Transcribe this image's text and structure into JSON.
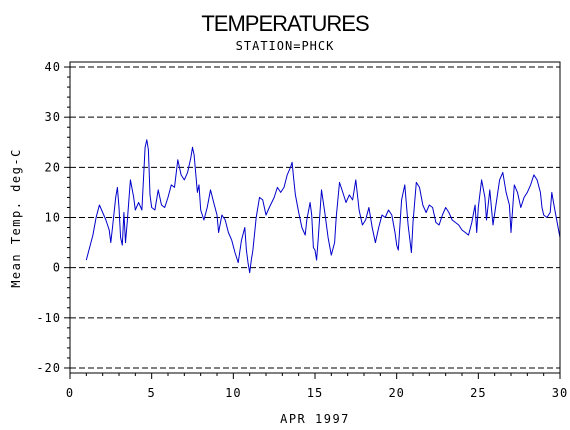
{
  "chart_data": {
    "type": "line",
    "title": "TEMPERATURES",
    "subtitle": "STATION=PHCK",
    "xlabel": "APR 1997",
    "ylabel": "Mean Temp. deg-C",
    "xlim": [
      0,
      30
    ],
    "ylim": [
      -21,
      41
    ],
    "x_ticks": [
      0,
      5,
      10,
      15,
      20,
      25,
      30
    ],
    "y_ticks": [
      -20,
      -10,
      0,
      10,
      20,
      30,
      40
    ],
    "gridlines_y": [
      -20,
      -10,
      0,
      10,
      20,
      30,
      40
    ],
    "grid": "horizontal dashed",
    "legend": "none",
    "series": [
      {
        "color": "#0000cc",
        "points": [
          [
            1.0,
            1.5
          ],
          [
            1.2,
            4.0
          ],
          [
            1.4,
            6.5
          ],
          [
            1.6,
            10.0
          ],
          [
            1.8,
            12.5
          ],
          [
            2.0,
            11.0
          ],
          [
            2.2,
            9.5
          ],
          [
            2.4,
            7.5
          ],
          [
            2.5,
            5.0
          ],
          [
            2.6,
            8.0
          ],
          [
            2.8,
            14.0
          ],
          [
            2.9,
            16.0
          ],
          [
            3.0,
            12.0
          ],
          [
            3.1,
            6.0
          ],
          [
            3.2,
            4.5
          ],
          [
            3.3,
            11.0
          ],
          [
            3.4,
            5.0
          ],
          [
            3.5,
            9.0
          ],
          [
            3.7,
            17.5
          ],
          [
            3.9,
            14.0
          ],
          [
            4.0,
            11.5
          ],
          [
            4.2,
            13.0
          ],
          [
            4.4,
            11.5
          ],
          [
            4.6,
            24.0
          ],
          [
            4.7,
            25.5
          ],
          [
            4.8,
            23.5
          ],
          [
            4.9,
            14.5
          ],
          [
            5.0,
            12.0
          ],
          [
            5.2,
            11.5
          ],
          [
            5.4,
            15.5
          ],
          [
            5.6,
            12.5
          ],
          [
            5.8,
            12.0
          ],
          [
            6.0,
            14.0
          ],
          [
            6.2,
            16.5
          ],
          [
            6.4,
            16.0
          ],
          [
            6.6,
            21.5
          ],
          [
            6.8,
            18.5
          ],
          [
            7.0,
            17.5
          ],
          [
            7.2,
            19.0
          ],
          [
            7.4,
            22.0
          ],
          [
            7.5,
            24.0
          ],
          [
            7.6,
            22.5
          ],
          [
            7.8,
            15.0
          ],
          [
            7.9,
            16.5
          ],
          [
            8.0,
            11.5
          ],
          [
            8.2,
            9.5
          ],
          [
            8.4,
            12.0
          ],
          [
            8.6,
            15.5
          ],
          [
            8.8,
            13.0
          ],
          [
            9.0,
            10.5
          ],
          [
            9.1,
            7.0
          ],
          [
            9.3,
            10.5
          ],
          [
            9.5,
            9.5
          ],
          [
            9.7,
            7.0
          ],
          [
            9.9,
            5.5
          ],
          [
            10.1,
            3.0
          ],
          [
            10.3,
            1.0
          ],
          [
            10.5,
            5.5
          ],
          [
            10.7,
            8.0
          ],
          [
            10.8,
            3.5
          ],
          [
            10.9,
            1.0
          ],
          [
            11.0,
            -1.0
          ],
          [
            11.1,
            1.5
          ],
          [
            11.2,
            3.5
          ],
          [
            11.4,
            10.0
          ],
          [
            11.6,
            14.0
          ],
          [
            11.8,
            13.5
          ],
          [
            12.0,
            10.5
          ],
          [
            12.2,
            12.0
          ],
          [
            12.5,
            14.0
          ],
          [
            12.7,
            16.0
          ],
          [
            12.9,
            15.0
          ],
          [
            13.1,
            16.0
          ],
          [
            13.3,
            18.5
          ],
          [
            13.5,
            20.0
          ],
          [
            13.6,
            21.0
          ],
          [
            13.7,
            17.5
          ],
          [
            13.8,
            14.5
          ],
          [
            14.0,
            11.0
          ],
          [
            14.2,
            8.0
          ],
          [
            14.4,
            6.5
          ],
          [
            14.5,
            9.5
          ],
          [
            14.7,
            13.0
          ],
          [
            14.8,
            10.5
          ],
          [
            14.9,
            4.0
          ],
          [
            15.0,
            3.5
          ],
          [
            15.1,
            1.5
          ],
          [
            15.2,
            6.0
          ],
          [
            15.4,
            15.5
          ],
          [
            15.6,
            11.0
          ],
          [
            15.8,
            6.0
          ],
          [
            16.0,
            2.5
          ],
          [
            16.2,
            5.0
          ],
          [
            16.3,
            10.0
          ],
          [
            16.5,
            17.0
          ],
          [
            16.7,
            15.0
          ],
          [
            16.9,
            13.0
          ],
          [
            17.1,
            14.5
          ],
          [
            17.3,
            13.5
          ],
          [
            17.5,
            17.5
          ],
          [
            17.7,
            11.5
          ],
          [
            17.9,
            8.5
          ],
          [
            18.1,
            9.5
          ],
          [
            18.3,
            12.0
          ],
          [
            18.5,
            8.0
          ],
          [
            18.7,
            5.0
          ],
          [
            18.9,
            8.0
          ],
          [
            19.1,
            10.5
          ],
          [
            19.3,
            10.0
          ],
          [
            19.5,
            11.5
          ],
          [
            19.7,
            10.5
          ],
          [
            19.9,
            7.0
          ],
          [
            20.0,
            4.5
          ],
          [
            20.1,
            3.5
          ],
          [
            20.3,
            13.5
          ],
          [
            20.5,
            16.5
          ],
          [
            20.7,
            8.5
          ],
          [
            20.9,
            3.0
          ],
          [
            21.0,
            9.0
          ],
          [
            21.2,
            17.0
          ],
          [
            21.4,
            16.0
          ],
          [
            21.6,
            12.5
          ],
          [
            21.8,
            11.0
          ],
          [
            22.0,
            12.5
          ],
          [
            22.2,
            12.0
          ],
          [
            22.4,
            9.0
          ],
          [
            22.6,
            8.5
          ],
          [
            22.8,
            10.5
          ],
          [
            23.0,
            12.0
          ],
          [
            23.2,
            11.0
          ],
          [
            23.4,
            9.5
          ],
          [
            23.6,
            9.0
          ],
          [
            23.8,
            8.5
          ],
          [
            24.0,
            7.5
          ],
          [
            24.2,
            7.0
          ],
          [
            24.4,
            6.5
          ],
          [
            24.6,
            9.0
          ],
          [
            24.8,
            12.5
          ],
          [
            24.9,
            7.0
          ],
          [
            25.0,
            12.0
          ],
          [
            25.2,
            17.5
          ],
          [
            25.4,
            14.0
          ],
          [
            25.5,
            9.5
          ],
          [
            25.7,
            15.5
          ],
          [
            25.9,
            8.5
          ],
          [
            26.1,
            13.0
          ],
          [
            26.3,
            17.5
          ],
          [
            26.5,
            19.0
          ],
          [
            26.7,
            15.0
          ],
          [
            26.9,
            12.5
          ],
          [
            27.0,
            7.0
          ],
          [
            27.2,
            16.5
          ],
          [
            27.4,
            15.0
          ],
          [
            27.6,
            12.0
          ],
          [
            27.8,
            14.0
          ],
          [
            28.0,
            15.0
          ],
          [
            28.2,
            16.5
          ],
          [
            28.4,
            18.5
          ],
          [
            28.6,
            17.5
          ],
          [
            28.8,
            15.0
          ],
          [
            28.9,
            12.0
          ],
          [
            29.0,
            10.5
          ],
          [
            29.2,
            10.0
          ],
          [
            29.4,
            11.0
          ],
          [
            29.5,
            15.0
          ],
          [
            29.6,
            13.0
          ],
          [
            29.8,
            9.5
          ],
          [
            30.0,
            6.0
          ]
        ]
      }
    ]
  }
}
